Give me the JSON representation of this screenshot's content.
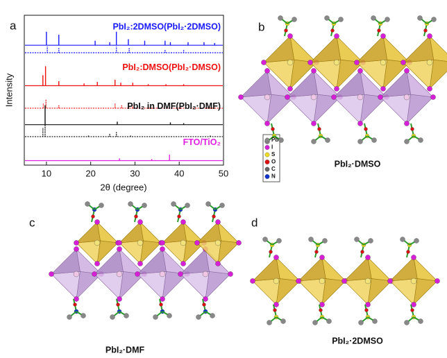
{
  "chart_data": {
    "type": "stem",
    "label": "a",
    "xlabel": "2θ (degree)",
    "ylabel": "Intensity",
    "xlim": [
      5,
      50
    ],
    "xticks": [
      10,
      20,
      30,
      40,
      50
    ],
    "ylim": [
      0,
      100
    ],
    "series": [
      {
        "name": "PbI₂:2DMSO(PbI₂·2DMSO)",
        "color": "#1a1aff",
        "style": "solid",
        "offset": 80,
        "x": [
          10,
          12.8,
          21,
          24.3,
          25.8,
          28.5,
          32.2,
          36.8,
          38,
          42,
          45.6,
          48
        ],
        "values": [
          9,
          7,
          3,
          2,
          9,
          4,
          3,
          3,
          2,
          2,
          2,
          1.5
        ]
      },
      {
        "color": "#1a1aff",
        "style": "dotted",
        "offset": 75,
        "x": [
          10.2,
          12.8,
          25.8,
          28.7,
          36.8,
          41
        ],
        "values": [
          4,
          3,
          4,
          3,
          2,
          2
        ]
      },
      {
        "name": "PbI₂:DMSO(PbI₂·DMSO)",
        "color": "#ee1111",
        "style": "solid",
        "offset": 53,
        "x": [
          9.2,
          9.8,
          12.8,
          18.5,
          21.5,
          25.5,
          26.8,
          29.5,
          33,
          37,
          41
        ],
        "values": [
          7,
          13,
          3,
          1.5,
          2.5,
          4,
          2,
          2,
          1,
          1,
          1
        ]
      },
      {
        "color": "#ee1111",
        "style": "dotted",
        "offset": 38,
        "x": [
          9.3,
          9.9,
          12.8,
          25.5,
          27,
          29.5
        ],
        "values": [
          3,
          6,
          2,
          3,
          2,
          1.5
        ]
      },
      {
        "name": "PbI₂ in DMF(PbI₂·DMF)",
        "color": "#111111",
        "style": "solid",
        "offset": 27,
        "x": [
          9.7,
          26,
          38,
          41
        ],
        "values": [
          13,
          2,
          1.5,
          1
        ]
      },
      {
        "color": "#111111",
        "style": "dotted",
        "offset": 19,
        "x": [
          9.2,
          9.7,
          19.5,
          24.3,
          25.8,
          29,
          47
        ],
        "values": [
          6,
          8,
          1,
          2,
          3,
          1,
          1
        ]
      },
      {
        "name": "FTO/TiO₂",
        "color": "#e020e0",
        "style": "solid",
        "offset": 3,
        "x": [
          26.5,
          33.8,
          37.8
        ],
        "values": [
          1.5,
          1,
          4
        ]
      }
    ]
  },
  "structures": {
    "b": {
      "label": "b",
      "caption": "PbI₂·DMSO",
      "legend": [
        "Pb",
        "I",
        "S",
        "O",
        "C",
        "N"
      ]
    },
    "c": {
      "label": "c",
      "caption": "PbI₂·DMF"
    },
    "d": {
      "label": "d",
      "caption": "PbI₂·2DMSO"
    }
  }
}
